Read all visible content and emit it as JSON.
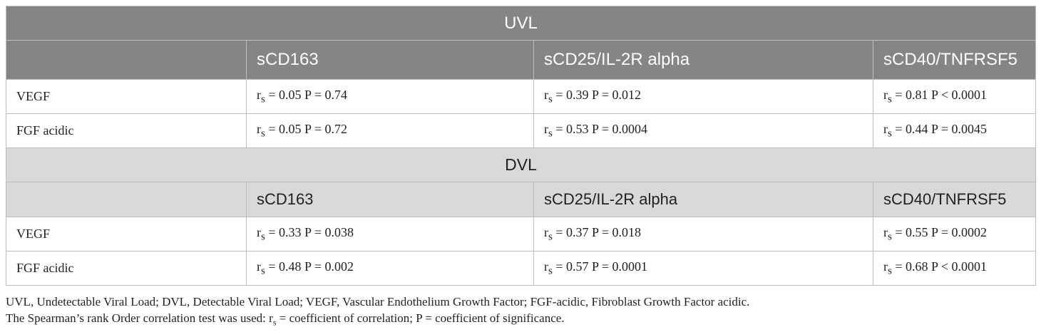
{
  "sections": [
    {
      "title": "UVL",
      "row_header": "",
      "columns": [
        "sCD163",
        "sCD25/IL-2R alpha",
        "sCD40/TNFRSF5"
      ],
      "rows": [
        {
          "label": "VEGF",
          "cells": [
            {
              "r_sym": "r",
              "r_sub": "s",
              "text": " = 0.05 P = 0.74"
            },
            {
              "r_sym": "r",
              "r_sub": "s",
              "text": " = 0.39 P = 0.012"
            },
            {
              "r_sym": "r",
              "r_sub": "s",
              "text": " = 0.81 P < 0.0001"
            }
          ]
        },
        {
          "label": "FGF acidic",
          "cells": [
            {
              "r_sym": "r",
              "r_sub": "s",
              "text": " = 0.05 P = 0.72"
            },
            {
              "r_sym": "r",
              "r_sub": "s",
              "text": " = 0.53 P = 0.0004"
            },
            {
              "r_sym": "r",
              "r_sub": "s",
              "text": " = 0.44 P = 0.0045"
            }
          ]
        }
      ]
    },
    {
      "title": "DVL",
      "row_header": "",
      "columns": [
        "sCD163",
        "sCD25/IL-2R alpha",
        "sCD40/TNFRSF5"
      ],
      "rows": [
        {
          "label": "VEGF",
          "cells": [
            {
              "r_sym": "r",
              "r_sub": "s",
              "text": " = 0.33 P = 0.038"
            },
            {
              "r_sym": "r",
              "r_sub": "s",
              "text": " = 0.37 P = 0.018"
            },
            {
              "r_sym": "r",
              "r_sub": "s",
              "text": " = 0.55 P = 0.0002"
            }
          ]
        },
        {
          "label": "FGF acidic",
          "cells": [
            {
              "r_sym": "r",
              "r_sub": "s",
              "text": " = 0.48 P = 0.002"
            },
            {
              "r_sym": "r",
              "r_sub": "s",
              "text": " = 0.57 P = 0.0001"
            },
            {
              "r_sym": "r",
              "r_sub": "s",
              "text": " = 0.68 P < 0.0001"
            }
          ]
        }
      ]
    }
  ],
  "footnotes": {
    "abbreviations": "UVL, Undetectable Viral Load; DVL, Detectable Viral Load; VEGF, Vascular Endothelium Growth Factor; FGF-acidic, Fibroblast Growth Factor acidic.",
    "method_before": "The Spearman’s rank Order correlation test was used: r",
    "method_sub": "s",
    "method_after": " = coefficient of correlation; P = coefficient of significance."
  },
  "colors": {
    "uvl_header_bg": "#858585",
    "dvl_header_bg": "#d9d9d9",
    "border": "#bdbdbd",
    "text": "#231f20"
  }
}
